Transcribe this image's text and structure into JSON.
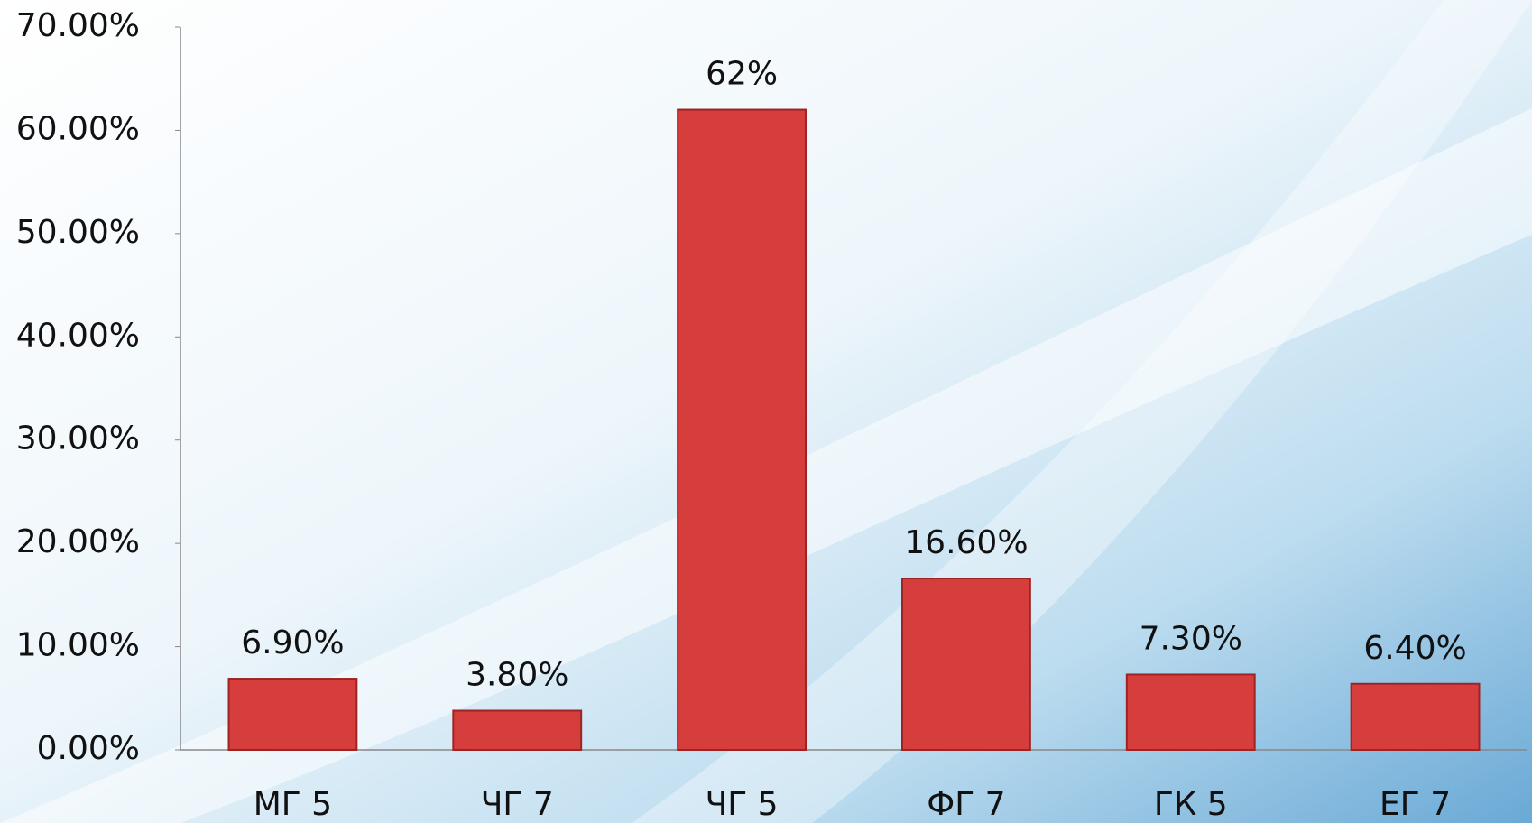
{
  "chart_data": {
    "type": "bar",
    "categories": [
      "МГ 5",
      "ЧГ 7",
      "ЧГ 5",
      "ФГ 7",
      "ГК 5",
      "ЕГ 7"
    ],
    "values": [
      6.9,
      3.8,
      62,
      16.6,
      7.3,
      6.4
    ],
    "value_labels": [
      "6.90%",
      "3.80%",
      "62%",
      "16.60%",
      "7.30%",
      "6.40%"
    ],
    "color": "#d63d3d",
    "ylim": [
      0,
      70
    ],
    "yticks": [
      {
        "value": 0,
        "label": "0.00%"
      },
      {
        "value": 10,
        "label": "10.00%"
      },
      {
        "value": 20,
        "label": "20.00%"
      },
      {
        "value": 30,
        "label": "30.00%"
      },
      {
        "value": 40,
        "label": "40.00%"
      },
      {
        "value": 50,
        "label": "50.00%"
      },
      {
        "value": 60,
        "label": "60.00%"
      },
      {
        "value": 70,
        "label": "70.00%"
      }
    ],
    "grid": false
  }
}
